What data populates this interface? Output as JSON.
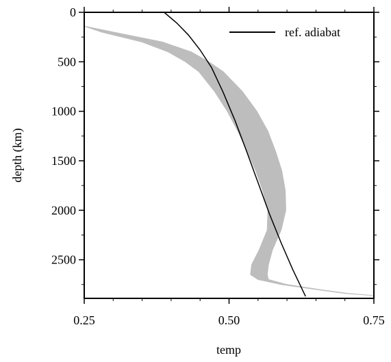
{
  "chart_data": {
    "type": "line",
    "title": "",
    "xlabel": "temp",
    "ylabel": "depth (km)",
    "xlim": [
      0.25,
      0.75
    ],
    "ylim": [
      2890,
      0
    ],
    "y_inverted": true,
    "grid": false,
    "legend_position": "top-right",
    "x_ticks": [
      0.25,
      0.5,
      0.75
    ],
    "x_tick_labels": [
      "0.25",
      "0.50",
      "0.75"
    ],
    "y_ticks": [
      0,
      500,
      1000,
      1500,
      2000,
      2500
    ],
    "y_tick_labels": [
      "0",
      "500",
      "1000",
      "1500",
      "2000",
      "2500"
    ],
    "colors": {
      "adiabat": "#000000",
      "band": "#bdbdbd"
    },
    "series": [
      {
        "name": "ref. adiabat",
        "kind": "line",
        "x": [
          0.388,
          0.41,
          0.43,
          0.45,
          0.47,
          0.49,
          0.51,
          0.53,
          0.55,
          0.57,
          0.59,
          0.61,
          0.632
        ],
        "y": [
          0,
          110,
          230,
          380,
          560,
          810,
          1090,
          1400,
          1720,
          2040,
          2330,
          2600,
          2870
        ]
      },
      {
        "kind": "band",
        "depth": [
          140,
          200,
          300,
          400,
          500,
          600,
          800,
          1000,
          1200,
          1400,
          1600,
          1800,
          2000,
          2200,
          2400,
          2550,
          2650,
          2700,
          2750,
          2800,
          2840,
          2860
        ],
        "temp_low": [
          0.25,
          0.28,
          0.35,
          0.395,
          0.425,
          0.448,
          0.475,
          0.497,
          0.515,
          0.531,
          0.546,
          0.558,
          0.567,
          0.566,
          0.552,
          0.539,
          0.537,
          0.55,
          0.59,
          0.65,
          0.7,
          0.748
        ],
        "temp_high": [
          0.25,
          0.3,
          0.385,
          0.435,
          0.465,
          0.49,
          0.523,
          0.548,
          0.567,
          0.58,
          0.591,
          0.597,
          0.598,
          0.59,
          0.575,
          0.568,
          0.566,
          0.568,
          0.6,
          0.655,
          0.705,
          0.748
        ]
      }
    ]
  }
}
